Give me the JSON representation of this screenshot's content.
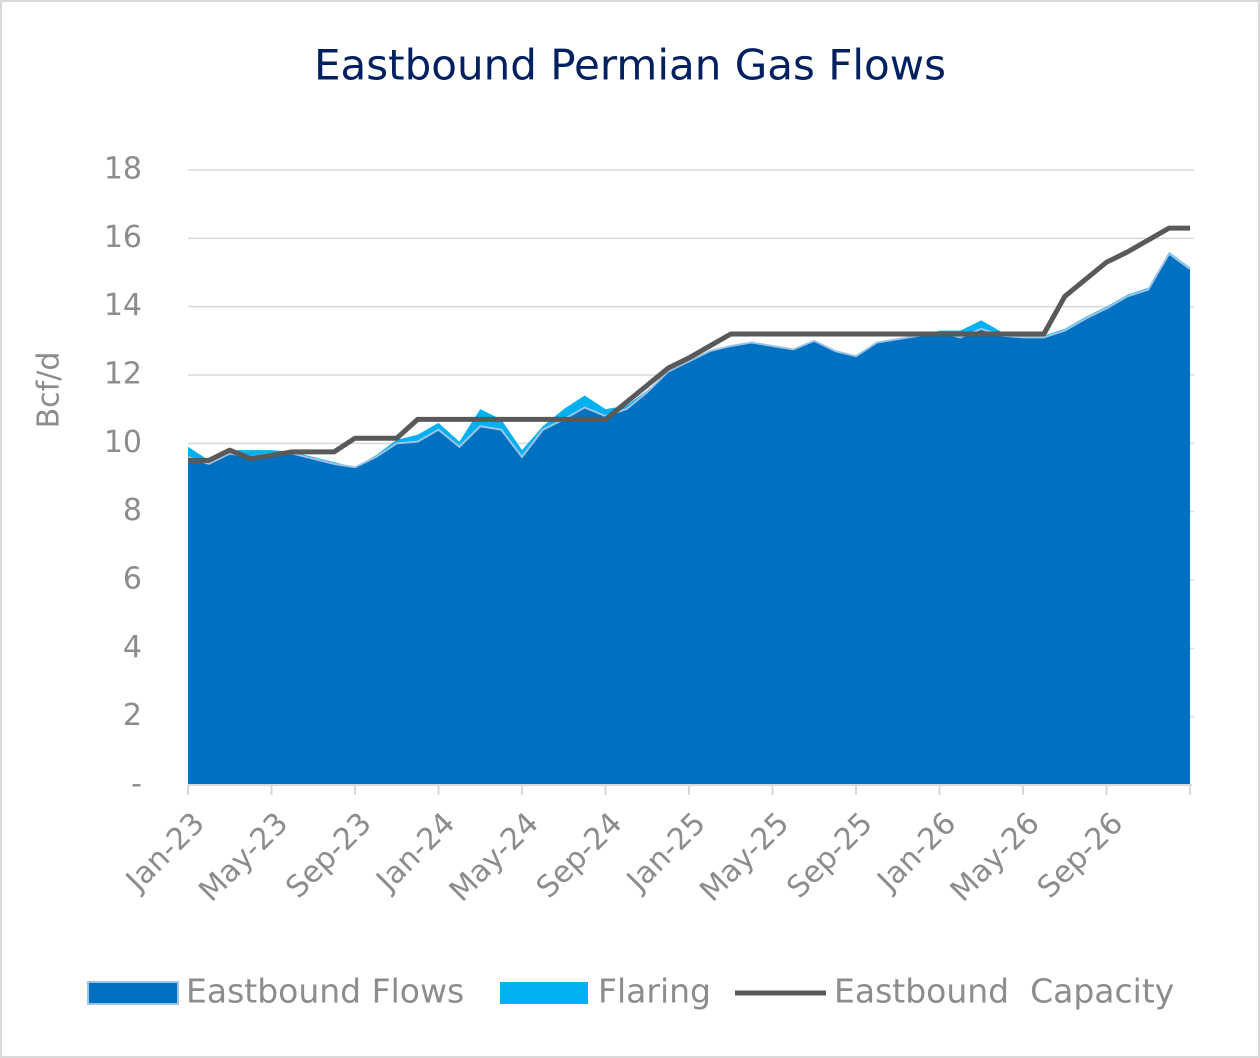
{
  "chart_data": {
    "type": "area",
    "title": "Eastbound Permian Gas Flows",
    "y_label": "Bcf/d",
    "categories": [
      "Jan-23",
      null,
      null,
      null,
      "May-23",
      null,
      null,
      null,
      "Sep-23",
      null,
      null,
      null,
      "Jan-24",
      null,
      null,
      null,
      "May-24",
      null,
      null,
      null,
      "Sep-24",
      null,
      null,
      null,
      "Jan-25",
      null,
      null,
      null,
      "May-25",
      null,
      null,
      null,
      "Sep-25",
      null,
      null,
      null,
      "Jan-26",
      null,
      null,
      null,
      "May-26",
      null,
      null,
      null,
      "Sep-26",
      null,
      null,
      null,
      null
    ],
    "series": [
      {
        "name": "Eastbound Flows",
        "color": "#0070c0",
        "edge_color": "#9dc3e6",
        "values": [
          9.6,
          9.4,
          9.7,
          9.6,
          9.7,
          9.7,
          9.55,
          9.4,
          9.3,
          9.6,
          10.0,
          10.05,
          10.4,
          9.9,
          10.5,
          10.4,
          9.6,
          10.4,
          10.7,
          11.05,
          10.8,
          11.0,
          11.5,
          12.1,
          12.4,
          12.7,
          12.85,
          12.95,
          12.85,
          12.75,
          13.0,
          12.7,
          12.55,
          12.95,
          13.05,
          13.15,
          13.25,
          13.1,
          13.35,
          13.15,
          13.1,
          13.1,
          13.3,
          13.65,
          13.95,
          14.3,
          14.5,
          15.55,
          15.1
        ]
      },
      {
        "name": "Flaring",
        "color": "#00b0f0",
        "stacked": true,
        "values": [
          0.3,
          0.1,
          0.1,
          0.2,
          0.1,
          0.05,
          0.05,
          0.05,
          0,
          0.05,
          0.1,
          0.2,
          0.2,
          0.15,
          0.5,
          0.3,
          0.2,
          0.1,
          0.3,
          0.35,
          0.2,
          0.1,
          0.05,
          0,
          0,
          0,
          0,
          0,
          0,
          0,
          0,
          0,
          0,
          0,
          0,
          0,
          0.05,
          0.2,
          0.25,
          0.1,
          0.05,
          0.05,
          0.05,
          0.05,
          0.05,
          0.05,
          0.05,
          0.05,
          0.05
        ]
      },
      {
        "name": "Eastbound  Capacity",
        "color": "#595959",
        "type": "line",
        "values": [
          9.5,
          9.5,
          9.8,
          9.55,
          9.65,
          9.75,
          9.75,
          9.75,
          10.15,
          10.15,
          10.15,
          10.7,
          10.7,
          10.7,
          10.7,
          10.7,
          10.7,
          10.7,
          10.7,
          10.7,
          10.7,
          11.2,
          11.7,
          12.2,
          12.5,
          12.85,
          13.2,
          13.2,
          13.2,
          13.2,
          13.2,
          13.2,
          13.2,
          13.2,
          13.2,
          13.2,
          13.2,
          13.2,
          13.2,
          13.2,
          13.2,
          13.2,
          14.3,
          14.8,
          15.3,
          15.6,
          15.95,
          16.3,
          16.3
        ]
      }
    ],
    "ylim": [
      0,
      18
    ],
    "yticks": [
      {
        "value": 0,
        "label": "-"
      },
      2,
      4,
      6,
      8,
      10,
      12,
      14,
      16,
      18
    ],
    "grid": true,
    "legend": "bottom"
  }
}
